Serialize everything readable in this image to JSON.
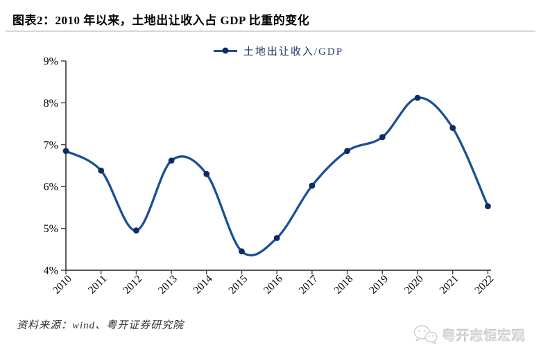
{
  "title": "图表2：2010 年以来，土地出让收入占 GDP 比重的变化",
  "legend": {
    "label": "土地出让收入/GDP"
  },
  "footer": {
    "source": "资料来源：wind、粤开证券研究院"
  },
  "watermark": {
    "icon": "wechat-icon",
    "label": "粤开志恒宏观"
  },
  "colors": {
    "line": "#1A4E96",
    "marker": "#0E2B63",
    "legend_text": "#1F3864",
    "axis": "#3f3f3f",
    "tick_label": "#000000",
    "title_rule": "#d6d6d6",
    "watermark": "#d9d9d9"
  },
  "chart_data": {
    "type": "line",
    "title": "图表2：2010 年以来，土地出让收入占 GDP 比重的变化",
    "categories": [
      "2010",
      "2011",
      "2012",
      "2013",
      "2014",
      "2015",
      "2016",
      "2017",
      "2018",
      "2019",
      "2020",
      "2021",
      "2022"
    ],
    "series": [
      {
        "name": "土地出让收入/GDP",
        "values": [
          6.85,
          6.38,
          4.95,
          6.62,
          6.3,
          4.45,
          4.77,
          6.02,
          6.85,
          7.18,
          8.12,
          7.4,
          5.53
        ]
      }
    ],
    "xlabel": "",
    "ylabel": "",
    "ylim": [
      4,
      9
    ],
    "y_tick_step": 1,
    "y_tick_labels": [
      "4%",
      "5%",
      "6%",
      "7%",
      "8%",
      "9%"
    ],
    "y_tick_suffix": "%",
    "grid": false,
    "smoothed": true,
    "markers": true,
    "legend_position": "top-center",
    "x_label_rotation": -45
  }
}
